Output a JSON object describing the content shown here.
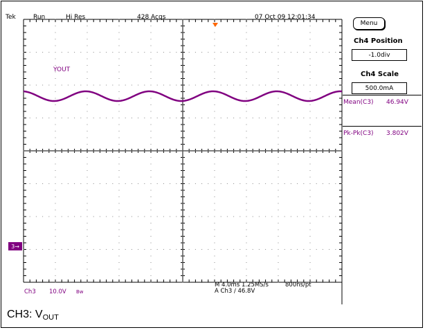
{
  "header": {
    "brand": "Tek",
    "state": "Run",
    "mode": "Hi Res",
    "acqs": "428 Acqs",
    "datetime": "07 Oct 09 12:01:34"
  },
  "menu_label": "Menu",
  "side_panel": {
    "position_title": "Ch4 Position",
    "position_value": "-1.0div",
    "scale_title": "Ch4 Scale",
    "scale_value": "500.0mA",
    "measurements": [
      {
        "label": "Mean(C3)",
        "value": "46.94V"
      },
      {
        "label": "Pk-Pk(C3)",
        "value": "3.802V"
      }
    ]
  },
  "waveform": {
    "label": "YOUT",
    "color": "#800080",
    "cycles": 5
  },
  "channel_marker": "3",
  "footer": {
    "channel": "Ch3",
    "volts_per_div": "10.0V",
    "bw": "Bw",
    "timebase": "M 4.0ms 1.25MS/s",
    "rate": "800ns/pt",
    "trigger": "A  Ch3  ∕  46.8V"
  },
  "caption": {
    "text": "CH3: V",
    "sub": "OUT"
  },
  "colors": {
    "trace": "#800080",
    "grid": "#000000",
    "trigger_marker": "#ff6600"
  }
}
